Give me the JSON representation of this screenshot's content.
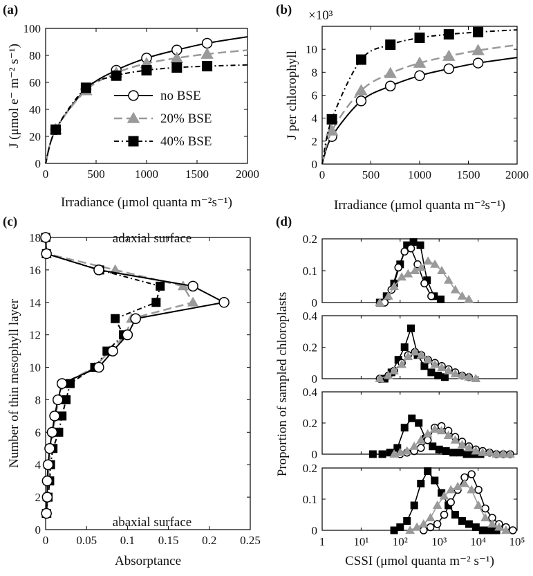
{
  "chart_data": [
    {
      "panel": "(a)",
      "type": "line",
      "xlabel": "Irradiance (μmol quanta m⁻²s⁻¹)",
      "ylabel": "J (μmol e⁻ m⁻² s⁻¹)",
      "xlim": [
        0,
        2000
      ],
      "ylim": [
        0,
        100
      ],
      "xticks": [
        "0",
        "500",
        "1000",
        "1500",
        "2000"
      ],
      "yticks": [
        "0",
        "20",
        "40",
        "60",
        "80",
        "100"
      ],
      "legend": [
        "no BSE",
        "20% BSE",
        "40% BSE"
      ],
      "series": [
        {
          "name": "no BSE",
          "x": [
            100,
            400,
            700,
            1000,
            1300,
            1600
          ],
          "y": [
            25,
            55,
            69,
            78,
            84,
            89
          ]
        },
        {
          "name": "20% BSE",
          "x": [
            100,
            400,
            700,
            1000,
            1300,
            1600
          ],
          "y": [
            25,
            54,
            67,
            74,
            78,
            81
          ]
        },
        {
          "name": "40% BSE",
          "x": [
            100,
            400,
            700,
            1000,
            1300,
            1600
          ],
          "y": [
            25,
            56,
            65,
            69,
            71,
            72
          ]
        }
      ]
    },
    {
      "panel": "(b)",
      "type": "line",
      "xlabel": "Irradiance (μmol quanta m⁻²s⁻¹)",
      "ylabel": "J per chlorophyll",
      "multiplier": "×10³",
      "xlim": [
        0,
        2000
      ],
      "ylim": [
        0,
        12
      ],
      "xticks": [
        "0",
        "500",
        "1000",
        "1500",
        "2000"
      ],
      "yticks": [
        "0",
        "2",
        "4",
        "6",
        "8",
        "10"
      ],
      "series": [
        {
          "name": "no BSE",
          "x": [
            100,
            400,
            700,
            1000,
            1300,
            1600
          ],
          "y": [
            2.4,
            5.5,
            6.8,
            7.7,
            8.3,
            8.8
          ]
        },
        {
          "name": "20% BSE",
          "x": [
            100,
            400,
            700,
            1000,
            1300,
            1600
          ],
          "y": [
            2.9,
            6.4,
            7.9,
            8.8,
            9.4,
            9.9
          ]
        },
        {
          "name": "40% BSE",
          "x": [
            100,
            400,
            700,
            1000,
            1300,
            1600
          ],
          "y": [
            3.9,
            9.1,
            10.4,
            11.0,
            11.3,
            11.5
          ]
        }
      ]
    },
    {
      "panel": "(c)",
      "type": "line",
      "xlabel": "Absorptance",
      "ylabel": "Number of thin mesophyll layer",
      "xlim": [
        0,
        0.25
      ],
      "ylim": [
        0,
        18
      ],
      "xticks": [
        "0",
        "0.05",
        "0.1",
        "0.15",
        "0.2",
        "0.25"
      ],
      "yticks": [
        "0",
        "2",
        "4",
        "6",
        "8",
        "10",
        "12",
        "14",
        "16",
        "18"
      ],
      "annotations": [
        "adaxial surface",
        "abaxial surface"
      ],
      "series": [
        {
          "name": "no BSE",
          "layer": [
            1,
            2,
            3,
            4,
            5,
            6,
            7,
            8,
            9,
            10,
            11,
            12,
            13,
            14,
            15,
            16,
            17,
            18
          ],
          "absorptance": [
            0.001,
            0.002,
            0.002,
            0.003,
            0.005,
            0.008,
            0.011,
            0.015,
            0.02,
            0.065,
            0.082,
            0.1,
            0.11,
            0.218,
            0.18,
            0.065,
            0.001,
            0.0
          ]
        },
        {
          "name": "20% BSE",
          "layer": [
            1,
            2,
            3,
            4,
            5,
            6,
            7,
            8,
            9,
            10,
            11,
            12,
            13,
            14,
            15,
            16,
            17,
            18
          ],
          "absorptance": [
            0.001,
            0.002,
            0.003,
            0.004,
            0.006,
            0.009,
            0.012,
            0.016,
            0.022,
            0.06,
            0.078,
            0.098,
            0.105,
            0.18,
            0.168,
            0.085,
            0.001,
            0.0
          ]
        },
        {
          "name": "40% BSE",
          "layer": [
            1,
            2,
            3,
            4,
            5,
            6,
            7,
            8,
            9,
            10,
            11,
            12,
            13,
            14,
            15,
            16,
            17,
            18
          ],
          "absorptance": [
            0.001,
            0.003,
            0.005,
            0.006,
            0.009,
            0.016,
            0.02,
            0.025,
            0.03,
            0.06,
            0.075,
            0.095,
            0.085,
            0.135,
            0.14,
            0.066,
            0.001,
            0.0
          ]
        }
      ]
    },
    {
      "panel": "(d)",
      "type": "line",
      "xlabel": "CSSI (μmol quanta m⁻² s⁻¹)",
      "ylabel": "Proportion of sampled chloroplasts",
      "xscale": "log",
      "xlim": [
        1,
        100000
      ],
      "xticks": [
        "1",
        "10¹",
        "10²",
        "10³",
        "10⁴",
        "10⁵"
      ],
      "subplots": [
        {
          "ylim": [
            0,
            0.2
          ],
          "yticks": [
            "0",
            "0.1",
            "0.2"
          ],
          "series": [
            {
              "name": "no BSE",
              "x": [
                40,
                60,
                90,
                130,
                190,
                280,
                420,
                630
              ],
              "y": [
                0.0,
                0.04,
                0.11,
                0.16,
                0.17,
                0.12,
                0.06,
                0.02
              ]
            },
            {
              "name": "20% BSE",
              "x": [
                30,
                50,
                70,
                110,
                160,
                240,
                350,
                520,
                780,
                1170,
                1750,
                2600,
                3900,
                5800
              ],
              "y": [
                0.0,
                0.02,
                0.05,
                0.08,
                0.09,
                0.1,
                0.11,
                0.13,
                0.12,
                0.1,
                0.07,
                0.04,
                0.02,
                0.01
              ]
            },
            {
              "name": "40% BSE",
              "x": [
                30,
                45,
                70,
                100,
                150,
                220,
                330,
                490,
                740,
                1100
              ],
              "y": [
                0.0,
                0.02,
                0.06,
                0.12,
                0.18,
                0.19,
                0.18,
                0.07,
                0.02,
                0.01
              ]
            }
          ]
        },
        {
          "ylim": [
            0,
            0.4
          ],
          "yticks": [
            "0",
            "0.2",
            "0.4"
          ],
          "series": [
            {
              "name": "no BSE",
              "x": [
                30,
                50,
                70,
                110,
                160,
                240,
                350,
                520,
                780,
                1170,
                1750,
                2600,
                3900,
                5800
              ],
              "y": [
                0.0,
                0.02,
                0.05,
                0.1,
                0.15,
                0.17,
                0.15,
                0.12,
                0.1,
                0.08,
                0.06,
                0.04,
                0.02,
                0.01
              ]
            },
            {
              "name": "20% BSE",
              "x": [
                30,
                50,
                70,
                110,
                160,
                240,
                350,
                520,
                780,
                1170,
                1750,
                2600,
                3900,
                5800,
                8700
              ],
              "y": [
                0.0,
                0.02,
                0.05,
                0.09,
                0.14,
                0.17,
                0.15,
                0.12,
                0.09,
                0.07,
                0.05,
                0.03,
                0.02,
                0.01,
                0.0
              ]
            },
            {
              "name": "40% BSE",
              "x": [
                40,
                60,
                90,
                130,
                190,
                280,
                420,
                630,
                940,
                1400
              ],
              "y": [
                0.0,
                0.04,
                0.12,
                0.2,
                0.32,
                0.15,
                0.08,
                0.04,
                0.02,
                0.01
              ]
            }
          ]
        },
        {
          "ylim": [
            0,
            0.4
          ],
          "yticks": [
            "0",
            "0.2",
            "0.4"
          ],
          "series": [
            {
              "name": "no BSE",
              "x": [
                100,
                150,
                230,
                340,
                510,
                770,
                1150,
                1730,
                2590,
                3890,
                5830,
                8750,
                13100,
                19700,
                29500,
                44300,
                66400
              ],
              "y": [
                0.0,
                0.01,
                0.02,
                0.04,
                0.09,
                0.17,
                0.18,
                0.15,
                0.11,
                0.08,
                0.05,
                0.03,
                0.02,
                0.01,
                0.0,
                0.0,
                0.0
              ]
            },
            {
              "name": "20% BSE",
              "x": [
                70,
                100,
                150,
                230,
                340,
                510,
                770,
                1150,
                1730,
                2590,
                3890,
                5830,
                8750,
                13100,
                19700,
                29500,
                44300,
                66400
              ],
              "y": [
                0.0,
                0.01,
                0.02,
                0.05,
                0.09,
                0.13,
                0.16,
                0.15,
                0.12,
                0.09,
                0.06,
                0.04,
                0.02,
                0.01,
                0.01,
                0.0,
                0.0,
                0.0
              ]
            },
            {
              "name": "40% BSE",
              "x": [
                20,
                35,
                55,
                85,
                130,
                200,
                300,
                450,
                680,
                1000,
                1500,
                2300,
                3400,
                5100,
                7700,
                11500
              ],
              "y": [
                0.0,
                0.0,
                0.01,
                0.04,
                0.17,
                0.23,
                0.2,
                0.1,
                0.05,
                0.03,
                0.02,
                0.01,
                0.01,
                0.0,
                0.0,
                0.0
              ]
            }
          ]
        },
        {
          "ylim": [
            0,
            0.2
          ],
          "yticks": [
            "0",
            "0.1",
            "0.2"
          ],
          "series": [
            {
              "name": "no BSE",
              "x": [
                400,
                600,
                900,
                1350,
                2000,
                3000,
                4500,
                6800,
                10200,
                15300,
                23000,
                34500,
                51800,
                77700
              ],
              "y": [
                0.0,
                0.01,
                0.02,
                0.05,
                0.09,
                0.13,
                0.17,
                0.18,
                0.13,
                0.07,
                0.04,
                0.02,
                0.01,
                0.0
              ]
            },
            {
              "name": "20% BSE",
              "x": [
                180,
                270,
                400,
                600,
                900,
                1350,
                2000,
                3000,
                4500,
                6800,
                10200,
                15300,
                23000,
                34500,
                51800
              ],
              "y": [
                0.0,
                0.01,
                0.02,
                0.04,
                0.08,
                0.11,
                0.13,
                0.14,
                0.15,
                0.13,
                0.08,
                0.04,
                0.02,
                0.01,
                0.0
              ]
            },
            {
              "name": "40% BSE",
              "x": [
                70,
                100,
                150,
                230,
                340,
                510,
                770,
                1150,
                1730,
                2590,
                3890,
                5830,
                8750,
                13100,
                19700,
                29500
              ],
              "y": [
                0.0,
                0.01,
                0.03,
                0.08,
                0.15,
                0.19,
                0.16,
                0.12,
                0.08,
                0.05,
                0.03,
                0.02,
                0.01,
                0.0,
                0.0,
                0.0
              ]
            }
          ]
        }
      ]
    }
  ]
}
